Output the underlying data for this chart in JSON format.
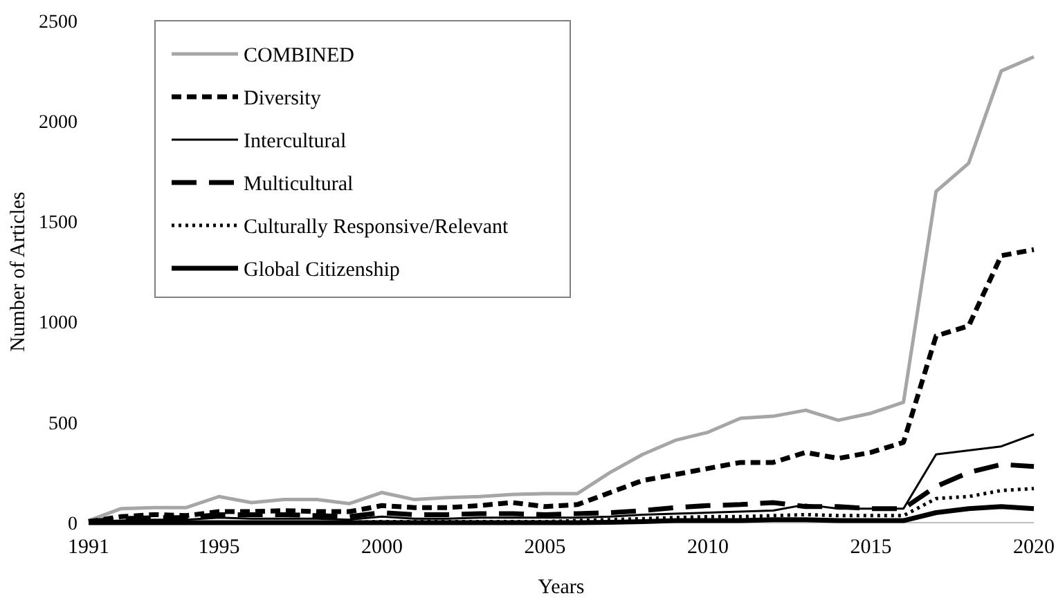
{
  "chart_data": {
    "type": "line",
    "xlabel": "Years",
    "ylabel": "Number of Articles",
    "x": [
      1991,
      1992,
      1993,
      1994,
      1995,
      1996,
      1997,
      1998,
      1999,
      2000,
      2001,
      2002,
      2003,
      2004,
      2005,
      2006,
      2007,
      2008,
      2009,
      2010,
      2011,
      2012,
      2013,
      2014,
      2015,
      2016,
      2017,
      2018,
      2019,
      2020
    ],
    "xlim": [
      1991,
      2020
    ],
    "xticks": [
      1991,
      1995,
      2000,
      2005,
      2010,
      2015,
      2020
    ],
    "ylim": [
      0,
      2500
    ],
    "yticks": [
      0,
      500,
      1000,
      1500,
      2000,
      2500
    ],
    "grid": false,
    "legend": "top left",
    "series": [
      {
        "name": "COMBINED",
        "color": "#a6a6a6",
        "line_style": "solid",
        "values": [
          10,
          70,
          75,
          75,
          130,
          100,
          115,
          115,
          95,
          150,
          115,
          125,
          130,
          140,
          145,
          145,
          250,
          340,
          410,
          450,
          520,
          530,
          560,
          510,
          545,
          600,
          1650,
          1790,
          2250,
          2320
        ]
      },
      {
        "name": "Diversity",
        "color": "#000000",
        "line_style": "dashed",
        "values": [
          5,
          30,
          40,
          35,
          55,
          55,
          60,
          55,
          55,
          85,
          75,
          75,
          85,
          100,
          80,
          90,
          150,
          210,
          240,
          270,
          300,
          300,
          350,
          320,
          350,
          400,
          930,
          980,
          1330,
          1360
        ]
      },
      {
        "name": "Intercultural",
        "color": "#000000",
        "line_style": "solid",
        "values": [
          5,
          10,
          15,
          15,
          25,
          20,
          20,
          20,
          15,
          30,
          20,
          20,
          25,
          25,
          25,
          25,
          30,
          40,
          45,
          50,
          55,
          60,
          90,
          70,
          70,
          70,
          340,
          360,
          380,
          440
        ]
      },
      {
        "name": "Multicultural",
        "color": "#000000",
        "line_style": "dashed",
        "values": [
          5,
          20,
          25,
          25,
          40,
          40,
          40,
          35,
          30,
          50,
          40,
          40,
          45,
          45,
          40,
          45,
          50,
          60,
          75,
          85,
          90,
          100,
          80,
          80,
          70,
          70,
          180,
          250,
          290,
          280
        ]
      },
      {
        "name": "Culturally Responsive/Relevant",
        "color": "#000000",
        "line_style": "dotted",
        "values": [
          0,
          0,
          0,
          0,
          2,
          2,
          2,
          2,
          2,
          5,
          5,
          5,
          5,
          5,
          5,
          10,
          15,
          20,
          25,
          30,
          30,
          35,
          40,
          35,
          35,
          35,
          120,
          130,
          160,
          170
        ]
      },
      {
        "name": "Global Citizenship",
        "color": "#000000",
        "line_style": "solid",
        "values": [
          0,
          0,
          0,
          0,
          0,
          0,
          0,
          0,
          0,
          0,
          0,
          0,
          0,
          0,
          0,
          0,
          2,
          5,
          10,
          10,
          10,
          15,
          15,
          10,
          10,
          10,
          50,
          70,
          80,
          70
        ]
      }
    ]
  }
}
